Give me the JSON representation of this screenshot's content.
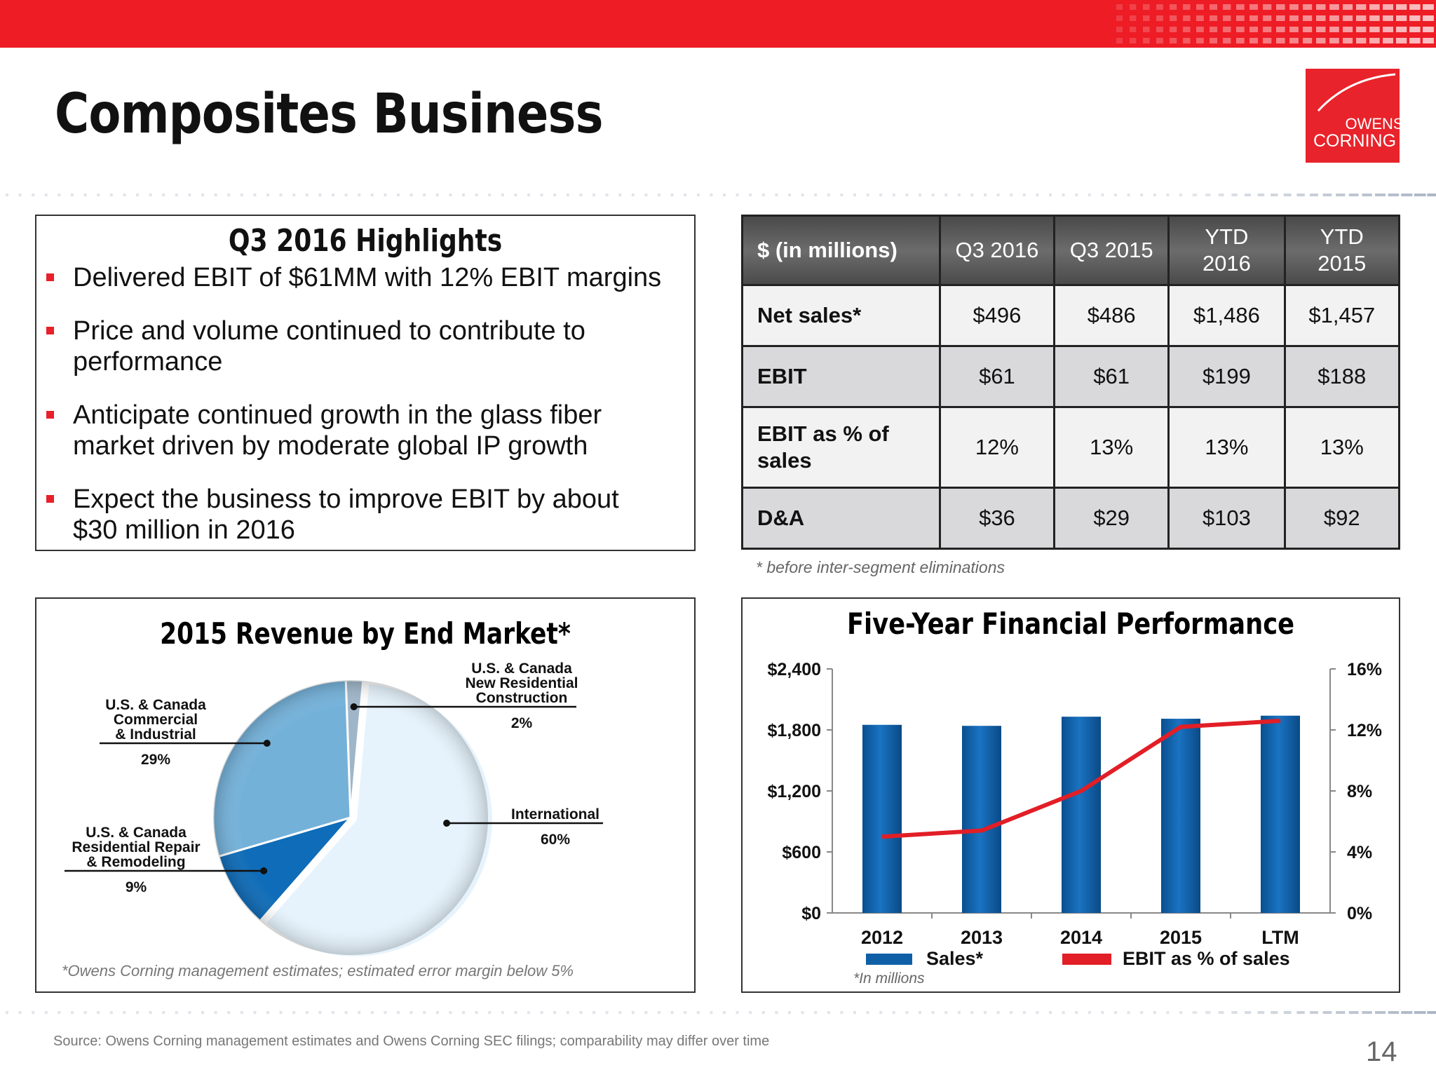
{
  "header": {
    "title": "Composites Business",
    "logo": {
      "line1": "OWENS",
      "line2": "CORNING"
    }
  },
  "colors": {
    "brand_red": "#ee1c25",
    "bar_blue": "#0f5fa6",
    "line_red": "#e21e26"
  },
  "highlights": {
    "heading": "Q3 2016 Highlights",
    "bullets": [
      {
        "lines": [
          "Delivered EBIT of $61MM with 12% EBIT margins"
        ]
      },
      {
        "lines": [
          "Price and volume continued to contribute to",
          "performance"
        ]
      },
      {
        "lines": [
          "Anticipate continued growth in the glass fiber",
          "market driven by moderate global IP growth"
        ]
      },
      {
        "lines": [
          "Expect the business to improve EBIT by about",
          "$30 million in 2016"
        ]
      }
    ]
  },
  "table": {
    "headers": [
      "$ (in millions)",
      "Q3 2016",
      "Q3 2015",
      "YTD\n2016",
      "YTD\n2015"
    ],
    "rows": [
      {
        "label": "Net sales*",
        "values": [
          "$496",
          "$486",
          "$1,486",
          "$1,457"
        ]
      },
      {
        "label": "EBIT",
        "values": [
          "$61",
          "$61",
          "$199",
          "$188"
        ]
      },
      {
        "label": "EBIT as % of\nsales",
        "values": [
          "12%",
          "13%",
          "13%",
          "13%"
        ]
      },
      {
        "label": "D&A",
        "values": [
          "$36",
          "$29",
          "$103",
          "$92"
        ]
      }
    ],
    "footnote": "* before inter-segment eliminations"
  },
  "pie_panel": {
    "footnote": "*Owens Corning management estimates; estimated error margin below 5%"
  },
  "perf_panel": {
    "note": "*In millions"
  },
  "chart_data": [
    {
      "type": "pie",
      "title": "2015 Revenue by End Market*",
      "slices": [
        {
          "label": "U.S. & Canada\nNew Residential\nConstruction",
          "value": 2,
          "display": "2%",
          "color": "#9fb6c9"
        },
        {
          "label": "International",
          "value": 60,
          "display": "60%",
          "color": "#e6f3fc"
        },
        {
          "label": "U.S. & Canada\nResidential Repair\n& Remodeling",
          "value": 9,
          "display": "9%",
          "color": "#0f6cb8"
        },
        {
          "label": "U.S. & Canada\nCommercial\n& Industrial",
          "value": 29,
          "display": "29%",
          "color": "#74b1d9"
        }
      ]
    },
    {
      "type": "bar",
      "title": "Five-Year Financial Performance",
      "categories": [
        "2012",
        "2013",
        "2014",
        "2015",
        "LTM"
      ],
      "series": [
        {
          "name": "Sales*",
          "type": "bar",
          "axis": "left",
          "values": [
            1850,
            1840,
            1930,
            1910,
            1940
          ]
        },
        {
          "name": "EBIT as % of sales",
          "type": "line",
          "axis": "right",
          "values": [
            5.0,
            5.4,
            8.0,
            12.2,
            12.6
          ]
        }
      ],
      "y_left": {
        "ticks": [
          "$0",
          "$600",
          "$1,200",
          "$1,800",
          "$2,400"
        ],
        "range": [
          0,
          2400
        ]
      },
      "y_right": {
        "ticks": [
          "0%",
          "4%",
          "8%",
          "12%",
          "16%"
        ],
        "range": [
          0,
          16
        ]
      }
    }
  ],
  "footer": {
    "source": "Source: Owens Corning management estimates and Owens Corning SEC filings; comparability may differ over time",
    "page": "14"
  }
}
